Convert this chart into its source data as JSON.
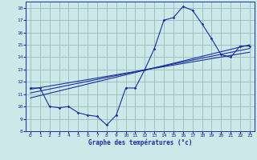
{
  "xlabel": "Graphe des températures (°c)",
  "xlim": [
    -0.5,
    23.5
  ],
  "ylim": [
    8,
    18.5
  ],
  "xticks": [
    0,
    1,
    2,
    3,
    4,
    5,
    6,
    7,
    8,
    9,
    10,
    11,
    12,
    13,
    14,
    15,
    16,
    17,
    18,
    19,
    20,
    21,
    22,
    23
  ],
  "yticks": [
    8,
    9,
    10,
    11,
    12,
    13,
    14,
    15,
    16,
    17,
    18
  ],
  "bg_color": "#cce8e8",
  "line_color": "#1a2fa0",
  "grid_color": "#99bbbb",
  "curve1_x": [
    0,
    1,
    2,
    3,
    4,
    5,
    6,
    7,
    8,
    9,
    10,
    11,
    12,
    13,
    14,
    15,
    16,
    17,
    18,
    19,
    20,
    21,
    22,
    23
  ],
  "curve1_y": [
    11.5,
    11.5,
    10.0,
    9.9,
    10.0,
    9.5,
    9.3,
    9.2,
    8.5,
    9.3,
    11.5,
    11.5,
    13.0,
    14.7,
    17.0,
    17.2,
    18.1,
    17.8,
    16.7,
    15.5,
    14.2,
    14.0,
    14.9,
    14.9
  ],
  "line1_x": [
    0,
    23
  ],
  "line1_y": [
    11.4,
    14.4
  ],
  "line2_x": [
    0,
    23
  ],
  "line2_y": [
    11.1,
    14.7
  ],
  "line3_x": [
    0,
    23
  ],
  "line3_y": [
    10.7,
    15.0
  ]
}
